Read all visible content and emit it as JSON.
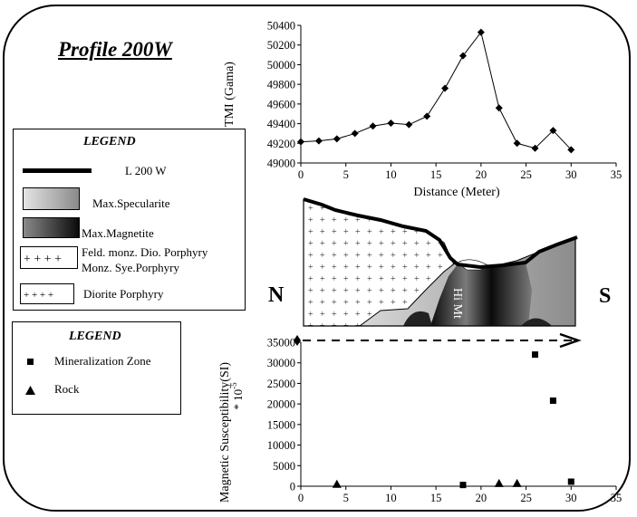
{
  "title": "Profile 200W",
  "legend_top": {
    "heading": "LEGEND",
    "items": [
      {
        "label": "L 200 W"
      },
      {
        "label": "Max.Specularite"
      },
      {
        "label": "Max.Magnetite"
      },
      {
        "label": "Feld. monz. Dio. Porphyry"
      },
      {
        "label": "Monz. Sye.Porphyry"
      },
      {
        "label": "Diorite  Porphyry"
      }
    ]
  },
  "legend_bottom": {
    "heading": "LEGEND",
    "items": [
      {
        "label": "Mineralization Zone",
        "symbol": "square"
      },
      {
        "label": "Rock",
        "symbol": "triangle"
      }
    ]
  },
  "directions": {
    "north": "N",
    "south": "S"
  },
  "section": {
    "label": "Hi Mt"
  },
  "colors": {
    "specularite_light": "#d8d8d8",
    "specularite_dark": "#8c8c8c",
    "magnetite_light": "#7a7a7a",
    "magnetite_dark": "#0a0a0a"
  },
  "chart_data": [
    {
      "type": "line",
      "xlabel": "Distance (Meter)",
      "ylabel": "TMI (Gama)",
      "xlim": [
        0,
        35
      ],
      "ylim": [
        49000,
        50400
      ],
      "xticks": [
        0,
        5,
        10,
        15,
        20,
        25,
        30,
        35
      ],
      "yticks": [
        49000,
        49200,
        49400,
        49600,
        49800,
        50000,
        50200,
        50400
      ],
      "grid": false,
      "series": [
        {
          "x": [
            0,
            2,
            4,
            6,
            8,
            10,
            12,
            14,
            16,
            18,
            20,
            22,
            24,
            26,
            28,
            30
          ],
          "y": [
            49215,
            49225,
            49245,
            49300,
            49375,
            49405,
            49390,
            49475,
            49760,
            50090,
            50330,
            49560,
            49200,
            49150,
            49330,
            49135
          ]
        }
      ]
    },
    {
      "type": "scatter",
      "xlabel": "",
      "ylabel": "Magnetic Susceptibility(SI)",
      "ylabel_sub": "* 10",
      "ylabel_sup": "-5",
      "xlim": [
        0,
        35
      ],
      "ylim": [
        0,
        35000
      ],
      "xticks": [
        0,
        5,
        10,
        15,
        20,
        25,
        30,
        35
      ],
      "yticks": [
        0,
        5000,
        10000,
        15000,
        20000,
        25000,
        30000,
        35000
      ],
      "grid": false,
      "series": [
        {
          "name": "Mineralization Zone",
          "marker": "square",
          "x": [
            18,
            26,
            28,
            30
          ],
          "y": [
            300,
            32000,
            20800,
            1100
          ]
        },
        {
          "name": "Rock",
          "marker": "triangle",
          "x": [
            4,
            22,
            24
          ],
          "y": [
            500,
            700,
            700
          ]
        }
      ]
    }
  ]
}
